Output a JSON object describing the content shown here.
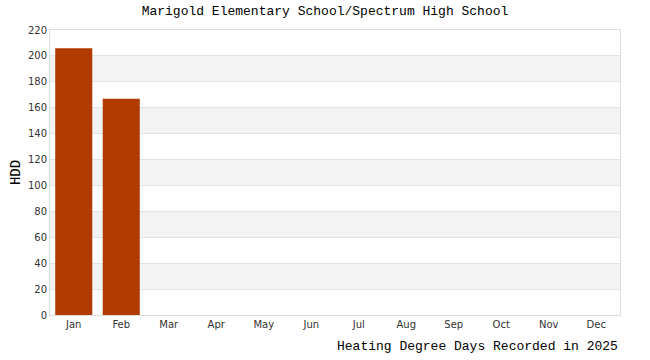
{
  "chart_data": {
    "type": "bar",
    "title": "Marigold Elementary School/Spectrum High School",
    "ylabel": "HDD",
    "xlabel": "Heating Degree Days Recorded in 2025",
    "categories": [
      "Jan",
      "Feb",
      "Mar",
      "Apr",
      "May",
      "Jun",
      "Jul",
      "Aug",
      "Sep",
      "Oct",
      "Nov",
      "Dec"
    ],
    "values": [
      206,
      167,
      null,
      null,
      null,
      null,
      null,
      null,
      null,
      null,
      null,
      null
    ],
    "color": "#b03a00",
    "ylim": [
      0,
      220
    ],
    "yticks": [
      0,
      20,
      40,
      60,
      80,
      100,
      120,
      140,
      160,
      180,
      200,
      220
    ],
    "grid": true
  }
}
